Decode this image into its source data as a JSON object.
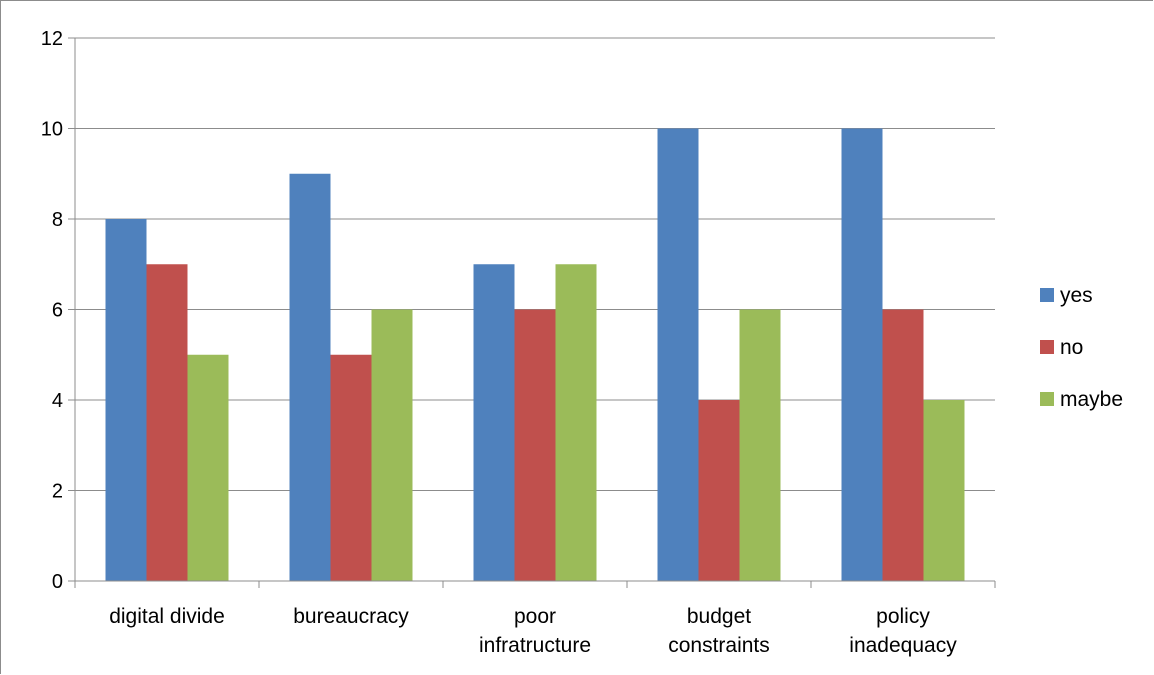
{
  "chart_data": {
    "type": "bar",
    "categories": [
      [
        "digital divide"
      ],
      [
        "bureaucracy"
      ],
      [
        "poor",
        "infratructure"
      ],
      [
        "budget",
        "constraints"
      ],
      [
        "policy",
        "inadequacy"
      ]
    ],
    "series": [
      {
        "name": "yes",
        "color": "#4f81bd",
        "values": [
          8,
          9,
          7,
          10,
          10
        ]
      },
      {
        "name": "no",
        "color": "#c0504d",
        "values": [
          7,
          5,
          6,
          4,
          6
        ]
      },
      {
        "name": "maybe",
        "color": "#9bbb59",
        "values": [
          5,
          6,
          7,
          6,
          4
        ]
      }
    ],
    "ylim": [
      0,
      12
    ],
    "yticks": [
      "0",
      "2",
      "4",
      "6",
      "8",
      "10",
      "12"
    ],
    "grid": true,
    "legend": "right"
  }
}
